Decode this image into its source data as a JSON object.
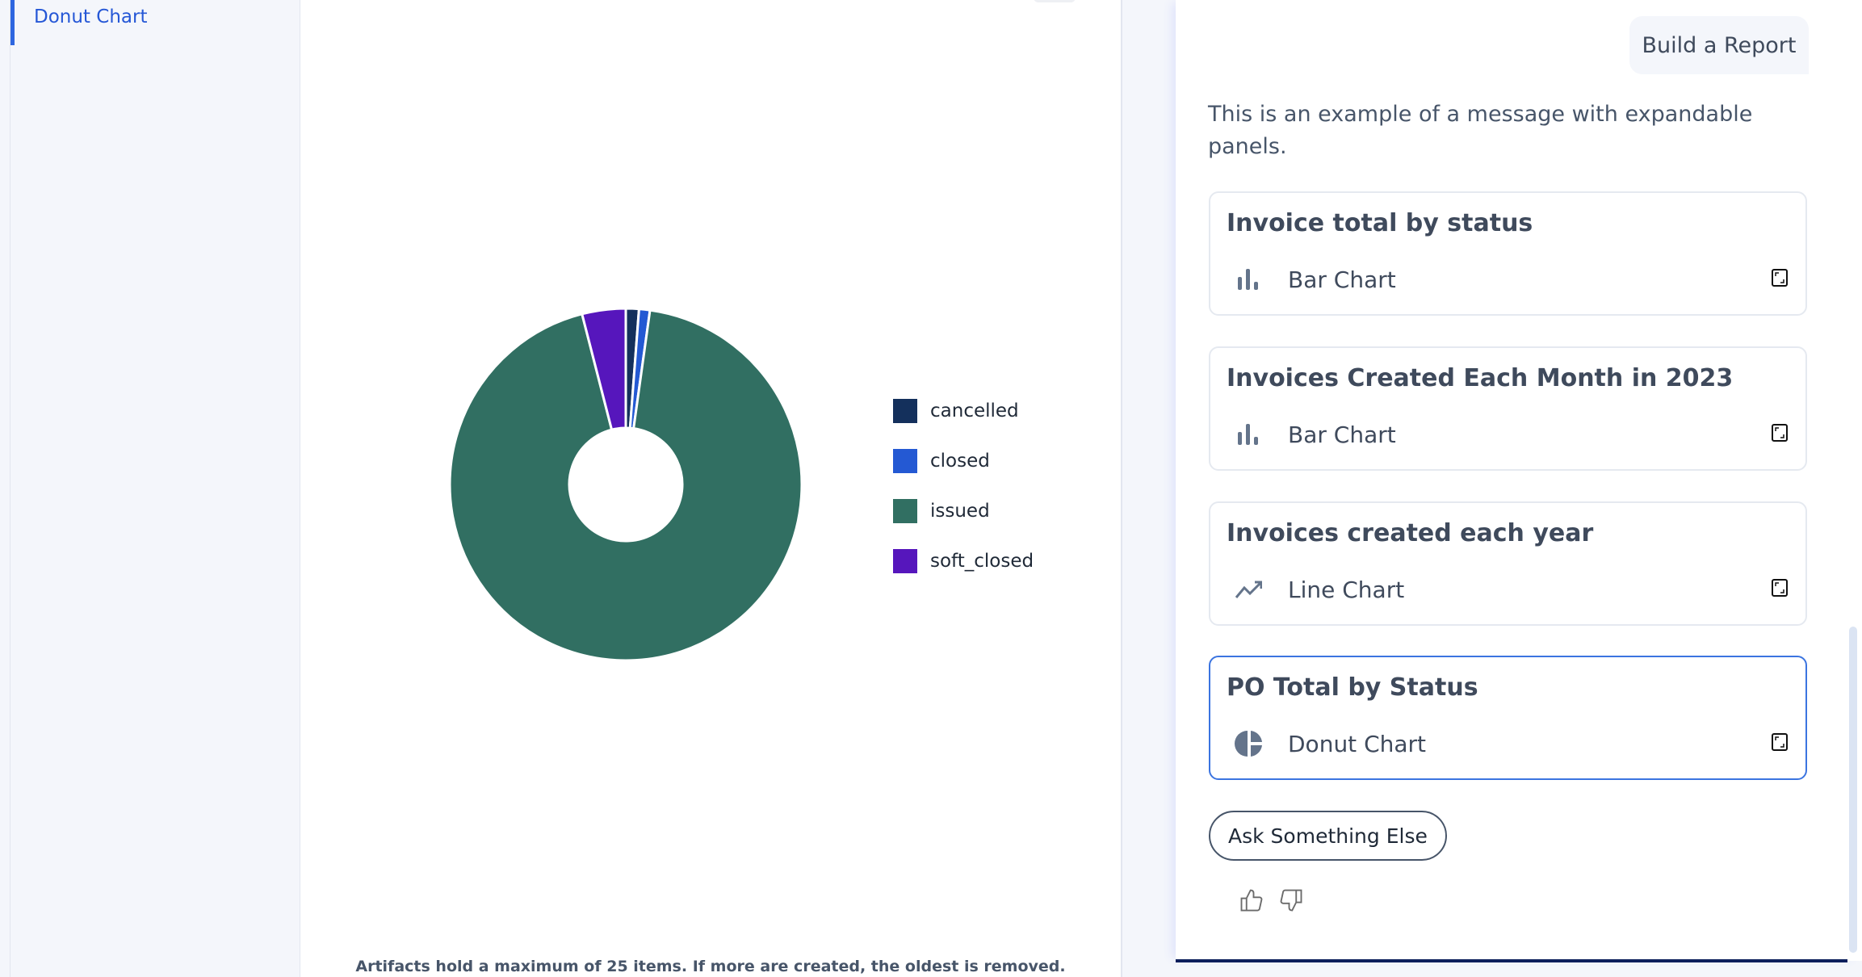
{
  "sidebar": {
    "active_item": "Donut Chart"
  },
  "artifact": {
    "footer_note": "Artifacts hold a maximum of 25 items. If more are created, the oldest is removed."
  },
  "chart_data": {
    "type": "pie",
    "donut": true,
    "categories": [
      "cancelled",
      "closed",
      "issued",
      "soft_closed"
    ],
    "values": [
      1.2,
      1.0,
      93.8,
      4.0
    ],
    "colors": [
      "#14305c",
      "#2459d3",
      "#316f62",
      "#5616bc"
    ],
    "legend": "right"
  },
  "chat": {
    "user_message": "Build a Report",
    "assistant_message": "This is an example of a message with expandable panels.",
    "panels": [
      {
        "title": "Invoice total by status",
        "type": "Bar Chart",
        "icon": "bar-chart-icon",
        "active": false
      },
      {
        "title": "Invoices Created Each Month in 2023",
        "type": "Bar Chart",
        "icon": "bar-chart-icon",
        "active": false
      },
      {
        "title": "Invoices created each year",
        "type": "Line Chart",
        "icon": "line-chart-icon",
        "active": false
      },
      {
        "title": "PO Total by Status",
        "type": "Donut Chart",
        "icon": "pie-chart-icon",
        "active": true
      }
    ],
    "ask_button": "Ask Something Else",
    "accent_color": "#3b74e0"
  }
}
